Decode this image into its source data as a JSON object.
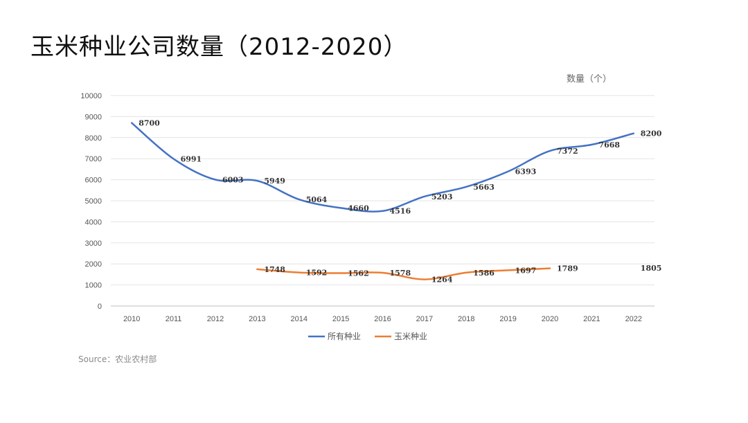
{
  "title": "玉米种业公司数量（2012-2020）",
  "unit_label": "数量（个）",
  "source": "Source：农业农村部",
  "colors": {
    "all": "#4472C4",
    "corn": "#ED7D31",
    "grid": "#e3e3e3"
  },
  "chart_data": {
    "type": "line",
    "title": "玉米种业公司数量（2012-2020）",
    "ylabel": "数量（个）",
    "xlabel": "",
    "ylim": [
      0,
      10000
    ],
    "yticks": [
      0,
      1000,
      2000,
      3000,
      4000,
      5000,
      6000,
      7000,
      8000,
      9000,
      10000
    ],
    "categories": [
      "2010",
      "2011",
      "2012",
      "2013",
      "2014",
      "2015",
      "2016",
      "2017",
      "2018",
      "2019",
      "2020",
      "2021",
      "2022"
    ],
    "grid": true,
    "legend_position": "bottom",
    "series": [
      {
        "name": "所有种业",
        "color": "#4472C4",
        "values": [
          8700,
          6991,
          6003,
          5949,
          5064,
          4660,
          4516,
          5203,
          5663,
          6393,
          7372,
          7668,
          8200
        ]
      },
      {
        "name": "玉米种业",
        "color": "#ED7D31",
        "values": [
          null,
          null,
          null,
          1748,
          1592,
          1562,
          1578,
          1264,
          1586,
          1697,
          1789,
          null,
          1805
        ]
      }
    ]
  }
}
